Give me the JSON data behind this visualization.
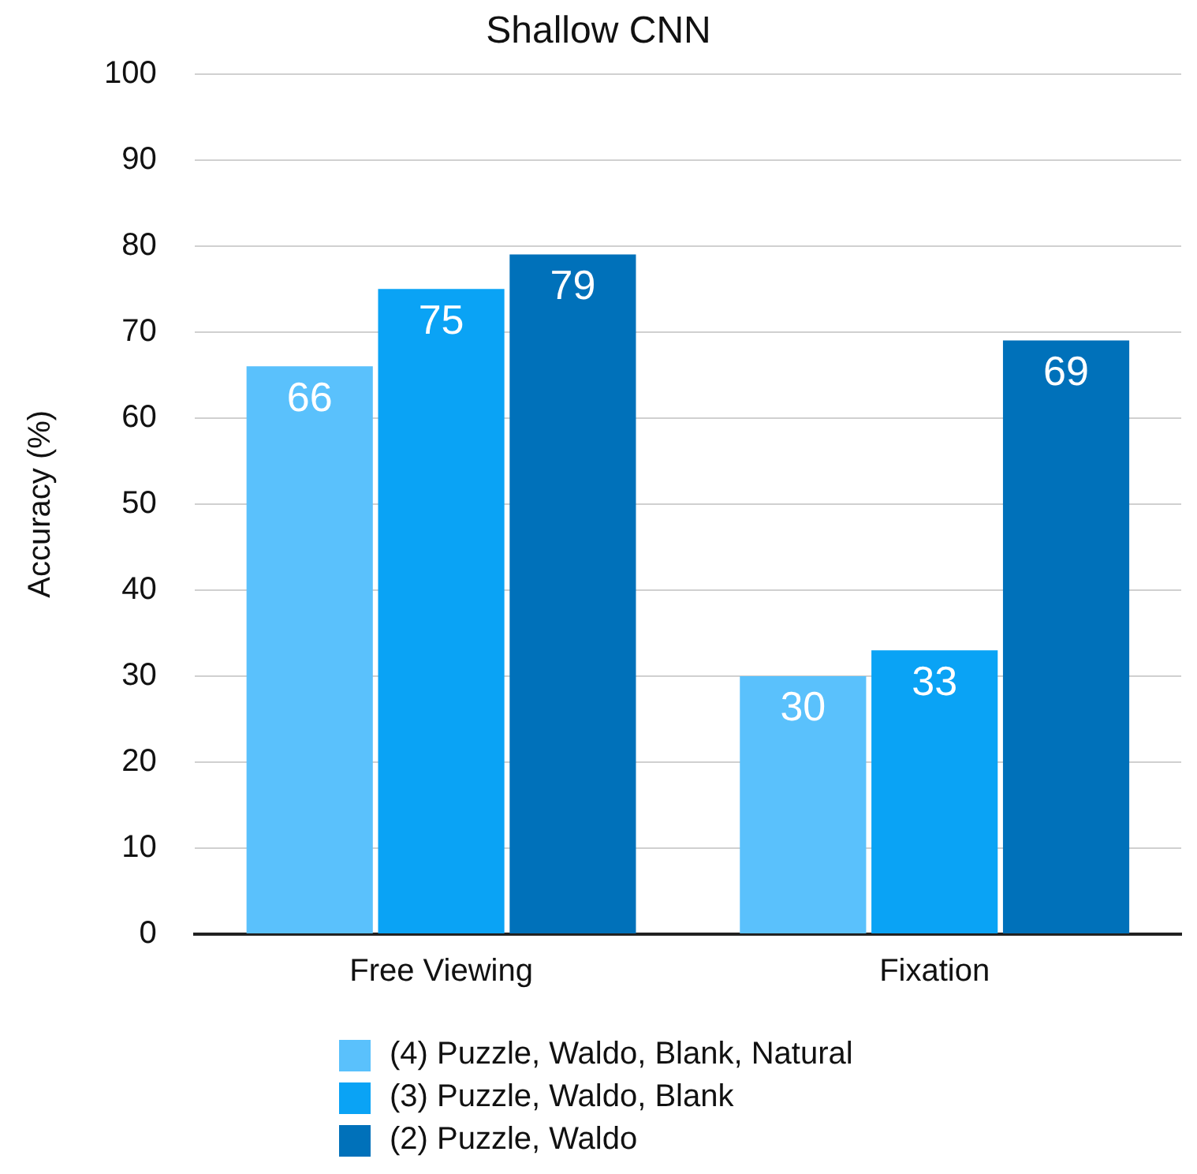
{
  "chart_data": {
    "type": "bar",
    "title": "Shallow CNN",
    "ylabel": "Accuracy (%)",
    "categories": [
      "Free Viewing",
      "Fixation"
    ],
    "series": [
      {
        "name": "(4) Puzzle, Waldo, Blank, Natural",
        "color": "#5ac1fc",
        "values": [
          66,
          30
        ]
      },
      {
        "name": "(3) Puzzle, Waldo, Blank",
        "color": "#0aa3f5",
        "values": [
          75,
          33
        ]
      },
      {
        "name": "(2) Puzzle, Waldo",
        "color": "#0071ba",
        "values": [
          79,
          69
        ]
      }
    ],
    "ylim": [
      0,
      100
    ],
    "yticks": [
      0,
      10,
      20,
      30,
      40,
      50,
      60,
      70,
      80,
      90,
      100
    ],
    "grid": "y",
    "legend": "bottom",
    "data_labels": true
  }
}
